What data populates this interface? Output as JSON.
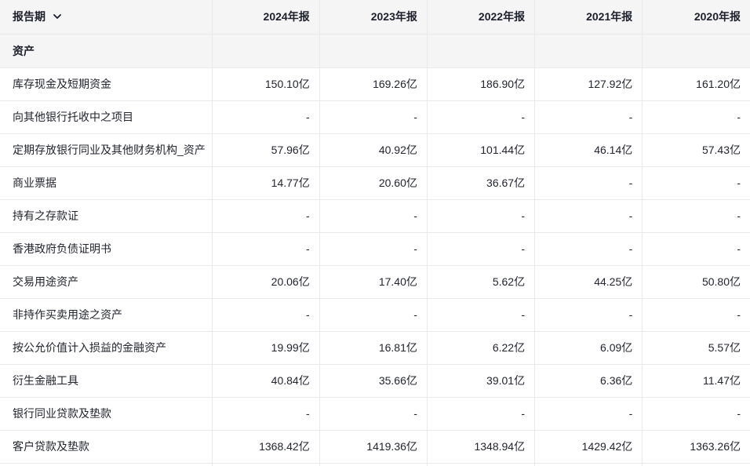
{
  "colors": {
    "header_bg": "#f5f5f6",
    "border": "#e9e9eb",
    "text": "#23252f",
    "text_strong": "#1c1f2b"
  },
  "header": {
    "report_period_label": "报告期",
    "dropdown_icon": "chevron-down-icon",
    "columns": [
      "2024年报",
      "2023年报",
      "2022年报",
      "2021年报",
      "2020年报"
    ]
  },
  "section": {
    "label": "资产"
  },
  "table": {
    "rows": [
      {
        "label": "库存现金及短期资金",
        "values": [
          "150.10亿",
          "169.26亿",
          "186.90亿",
          "127.92亿",
          "161.20亿"
        ]
      },
      {
        "label": "向其他银行托收中之项目",
        "values": [
          "-",
          "-",
          "-",
          "-",
          "-"
        ]
      },
      {
        "label": "定期存放银行同业及其他财务机构_资产",
        "values": [
          "57.96亿",
          "40.92亿",
          "101.44亿",
          "46.14亿",
          "57.43亿"
        ]
      },
      {
        "label": "商业票据",
        "values": [
          "14.77亿",
          "20.60亿",
          "36.67亿",
          "-",
          "-"
        ]
      },
      {
        "label": "持有之存款证",
        "values": [
          "-",
          "-",
          "-",
          "-",
          "-"
        ]
      },
      {
        "label": "香港政府负债证明书",
        "values": [
          "-",
          "-",
          "-",
          "-",
          "-"
        ]
      },
      {
        "label": "交易用途资产",
        "values": [
          "20.06亿",
          "17.40亿",
          "5.62亿",
          "44.25亿",
          "50.80亿"
        ]
      },
      {
        "label": "非持作买卖用途之资产",
        "values": [
          "-",
          "-",
          "-",
          "-",
          "-"
        ]
      },
      {
        "label": "按公允价值计入损益的金融资产",
        "values": [
          "19.99亿",
          "16.81亿",
          "6.22亿",
          "6.09亿",
          "5.57亿"
        ]
      },
      {
        "label": "衍生金融工具",
        "values": [
          "40.84亿",
          "35.66亿",
          "39.01亿",
          "6.36亿",
          "11.47亿"
        ]
      },
      {
        "label": "银行同业贷款及垫款",
        "values": [
          "-",
          "-",
          "-",
          "-",
          "-"
        ]
      },
      {
        "label": "客户贷款及垫款",
        "values": [
          "1368.42亿",
          "1419.36亿",
          "1348.94亿",
          "1429.42亿",
          "1363.26亿"
        ]
      }
    ]
  }
}
